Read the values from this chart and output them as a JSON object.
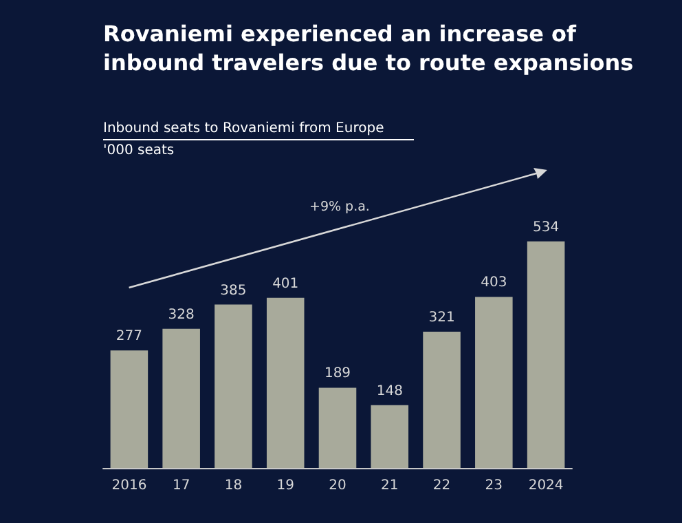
{
  "chart_data": {
    "type": "bar",
    "title": "Rovaniemi experienced an increase of inbound travelers due to route expansions",
    "subtitle": "Inbound seats to Rovaniemi from Europe",
    "categories": [
      "2016",
      "17",
      "18",
      "19",
      "20",
      "21",
      "22",
      "23",
      "2024"
    ],
    "values": [
      277,
      328,
      385,
      401,
      189,
      148,
      321,
      403,
      534
    ],
    "color": "#a8aa9b",
    "data_labels": true,
    "annotations": [
      "'000 seats",
      "+9% p.a."
    ]
  }
}
